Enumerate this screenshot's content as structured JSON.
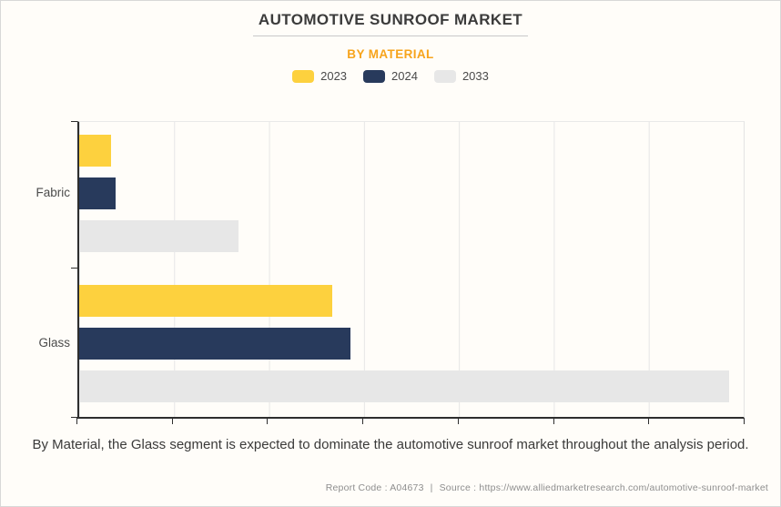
{
  "title": "AUTOMOTIVE SUNROOF MARKET",
  "subtitle": "BY MATERIAL",
  "legend": [
    {
      "label": "2023",
      "color": "#fdd13e"
    },
    {
      "label": "2024",
      "color": "#283a5c"
    },
    {
      "label": "2033",
      "color": "#e7e7e7"
    }
  ],
  "chart_data": {
    "type": "bar",
    "orientation": "horizontal",
    "title": "AUTOMOTIVE SUNROOF MARKET",
    "subtitle": "BY MATERIAL",
    "categories": [
      "Fabric",
      "Glass"
    ],
    "series": [
      {
        "name": "2023",
        "color": "#fdd13e",
        "values": [
          4.8,
          38.1
        ]
      },
      {
        "name": "2024",
        "color": "#283a5c",
        "values": [
          5.5,
          40.8
        ]
      },
      {
        "name": "2033",
        "color": "#e7e7e7",
        "values": [
          24.0,
          97.8
        ]
      }
    ],
    "xlabel": "",
    "ylabel": "",
    "xlim": [
      0,
      100
    ],
    "value_note": "axis has no numeric tick labels; values are estimated relative bar lengths as % of axis width",
    "grid": "vertical-only",
    "gridline_count": 7,
    "legend_position": "top"
  },
  "caption": "By Material, the Glass segment is expected to dominate the automotive sunroof market throughout the analysis period.",
  "footer": {
    "report_code": "Report Code : A04673",
    "separator": "|",
    "source": "Source : https://www.alliedmarketresearch.com/automotive-sunroof-market"
  },
  "colors": {
    "background": "#fffdf9",
    "subtitle_accent": "#f7a41c",
    "axis": "#2e2e2e",
    "gridline": "#e6e6e6",
    "title_text": "#3b3b3b",
    "footer_text": "#8e8e8e"
  }
}
